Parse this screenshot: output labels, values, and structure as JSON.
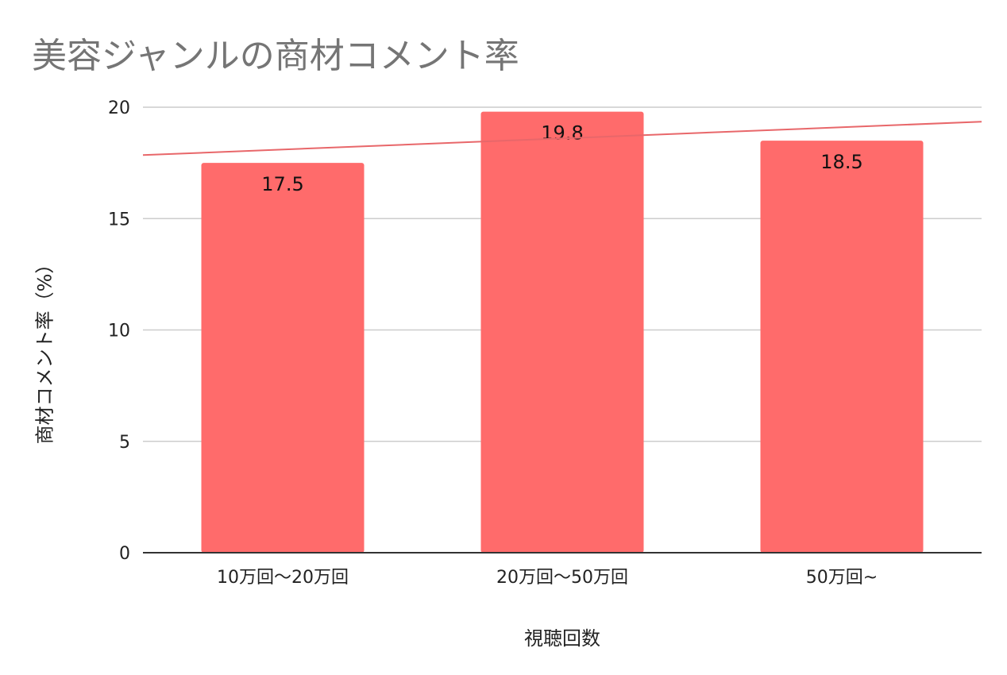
{
  "chart_data": {
    "type": "bar",
    "title": "美容ジャンルの商材コメント率",
    "xlabel": "視聴回数",
    "ylabel": "商材コメント率（%）",
    "categories": [
      "10万回〜20万回",
      "20万回〜50万回",
      "50万回~"
    ],
    "values": [
      17.5,
      19.8,
      18.5
    ],
    "data_labels": [
      "17.5",
      "19.8",
      "18.5"
    ],
    "ylim": [
      0,
      20
    ],
    "yticks": [
      0,
      5,
      10,
      15,
      20
    ],
    "grid": true,
    "legend": "none",
    "trendline": {
      "type": "linear",
      "color": "#e8676a"
    },
    "colors": {
      "bar": "#ff6b6b",
      "trendline": "#e8676a",
      "grid": "#cccccc",
      "axis": "#333333",
      "title": "#757575"
    }
  }
}
